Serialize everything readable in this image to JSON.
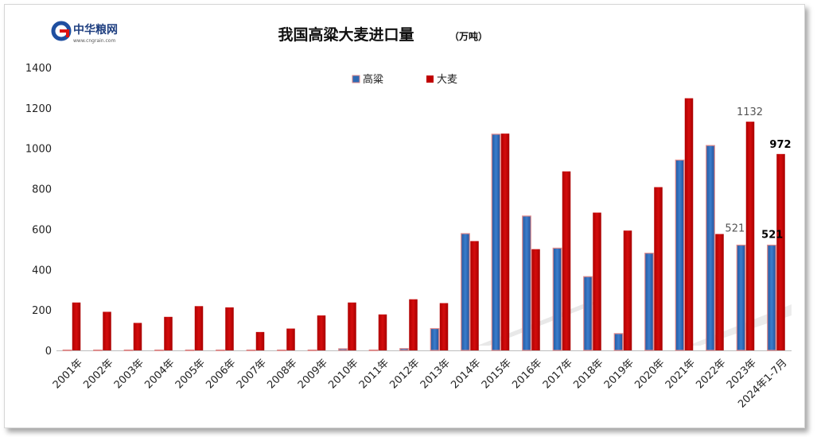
{
  "logo": {
    "name": "中华粮网",
    "url": "www.cngrain.com"
  },
  "chart_data": {
    "type": "bar",
    "title": "我国高粱大麦进口量",
    "unit": "（万吨）",
    "xlabel": "",
    "ylabel": "",
    "ylim": [
      0,
      1400
    ],
    "yticks": [
      "0",
      "200",
      "400",
      "600",
      "800",
      "1000",
      "1200",
      "1400"
    ],
    "grid": false,
    "legend_position": "top-center",
    "categories": [
      "2001年",
      "2002年",
      "2003年",
      "2004年",
      "2005年",
      "2006年",
      "2007年",
      "2008年",
      "2009年",
      "2010年",
      "2011年",
      "2012年",
      "2013年",
      "2014年",
      "2015年",
      "2016年",
      "2017年",
      "2018年",
      "2019年",
      "2020年",
      "2021年",
      "2022年",
      "2023年",
      "2024年1-7月"
    ],
    "series": [
      {
        "name": "高粱",
        "color": "#2e6ab4",
        "edge": "#e08a8a",
        "values": [
          2,
          2,
          2,
          2,
          2,
          2,
          2,
          2,
          2,
          8,
          2,
          9,
          108,
          578,
          1070,
          665,
          506,
          365,
          83,
          481,
          942,
          1014,
          521,
          521
        ]
      },
      {
        "name": "大麦",
        "color": "#c00000",
        "values": [
          237,
          191,
          136,
          166,
          219,
          213,
          91,
          108,
          173,
          237,
          178,
          253,
          234,
          541,
          1073,
          501,
          886,
          682,
          593,
          808,
          1248,
          576,
          1132,
          972
        ]
      }
    ],
    "data_labels": [
      {
        "series": 0,
        "index": 22,
        "text": "521",
        "style": "normal"
      },
      {
        "series": 1,
        "index": 22,
        "text": "1132",
        "style": "normal"
      },
      {
        "series": 0,
        "index": 23,
        "text": "521",
        "style": "bold"
      },
      {
        "series": 1,
        "index": 23,
        "text": "972",
        "style": "bold"
      }
    ]
  }
}
